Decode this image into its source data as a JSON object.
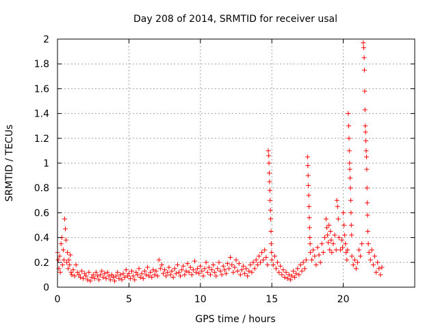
{
  "chart_data": {
    "type": "scatter",
    "title": "Day 208 of 2014, SRMTID for receiver usal",
    "xlabel": "GPS time / hours",
    "ylabel": "SRMTID / TECUs",
    "xlim": [
      0,
      25
    ],
    "ylim": [
      0,
      2
    ],
    "xticks": [
      0,
      5,
      10,
      15,
      20
    ],
    "yticks": [
      0,
      0.2,
      0.4,
      0.6,
      0.8,
      1,
      1.2,
      1.4,
      1.6,
      1.8,
      2
    ],
    "xtick_labels": [
      "0",
      "5",
      "10",
      "15",
      "20"
    ],
    "ytick_labels": [
      "0",
      "0.2",
      "0.4",
      "0.6",
      "0.8",
      "1",
      "1.2",
      "1.4",
      "1.6",
      "1.8",
      "2"
    ],
    "grid": true,
    "marker": "+",
    "color": "#ff0000",
    "series": [
      {
        "name": "SRMTID",
        "points": [
          [
            0.0,
            0.28
          ],
          [
            0.05,
            0.22
          ],
          [
            0.1,
            0.15
          ],
          [
            0.15,
            0.25
          ],
          [
            0.2,
            0.12
          ],
          [
            0.25,
            0.35
          ],
          [
            0.3,
            0.4
          ],
          [
            0.35,
            0.18
          ],
          [
            0.4,
            0.3
          ],
          [
            0.45,
            0.22
          ],
          [
            0.5,
            0.55
          ],
          [
            0.55,
            0.47
          ],
          [
            0.6,
            0.38
          ],
          [
            0.65,
            0.2
          ],
          [
            0.7,
            0.28
          ],
          [
            0.75,
            0.15
          ],
          [
            0.8,
            0.22
          ],
          [
            0.85,
            0.18
          ],
          [
            0.9,
            0.26
          ],
          [
            0.95,
            0.12
          ],
          [
            1.0,
            0.1
          ],
          [
            1.1,
            0.14
          ],
          [
            1.2,
            0.09
          ],
          [
            1.3,
            0.18
          ],
          [
            1.4,
            0.12
          ],
          [
            1.5,
            0.1
          ],
          [
            1.6,
            0.08
          ],
          [
            1.7,
            0.13
          ],
          [
            1.8,
            0.07
          ],
          [
            1.9,
            0.11
          ],
          [
            2.0,
            0.09
          ],
          [
            2.1,
            0.06
          ],
          [
            2.2,
            0.12
          ],
          [
            2.3,
            0.05
          ],
          [
            2.4,
            0.08
          ],
          [
            2.5,
            0.1
          ],
          [
            2.6,
            0.07
          ],
          [
            2.7,
            0.12
          ],
          [
            2.8,
            0.09
          ],
          [
            2.9,
            0.06
          ],
          [
            3.0,
            0.1
          ],
          [
            3.1,
            0.13
          ],
          [
            3.2,
            0.08
          ],
          [
            3.3,
            0.11
          ],
          [
            3.4,
            0.07
          ],
          [
            3.5,
            0.12
          ],
          [
            3.6,
            0.09
          ],
          [
            3.7,
            0.06
          ],
          [
            3.8,
            0.1
          ],
          [
            3.9,
            0.08
          ],
          [
            4.0,
            0.05
          ],
          [
            4.1,
            0.09
          ],
          [
            4.2,
            0.12
          ],
          [
            4.3,
            0.07
          ],
          [
            4.4,
            0.1
          ],
          [
            4.5,
            0.06
          ],
          [
            4.6,
            0.11
          ],
          [
            4.7,
            0.08
          ],
          [
            4.8,
            0.14
          ],
          [
            4.9,
            0.09
          ],
          [
            5.0,
            0.11
          ],
          [
            5.1,
            0.07
          ],
          [
            5.2,
            0.13
          ],
          [
            5.3,
            0.09
          ],
          [
            5.4,
            0.06
          ],
          [
            5.5,
            0.12
          ],
          [
            5.6,
            0.1
          ],
          [
            5.7,
            0.15
          ],
          [
            5.8,
            0.08
          ],
          [
            5.9,
            0.11
          ],
          [
            6.0,
            0.07
          ],
          [
            6.1,
            0.13
          ],
          [
            6.2,
            0.1
          ],
          [
            6.3,
            0.16
          ],
          [
            6.4,
            0.09
          ],
          [
            6.5,
            0.12
          ],
          [
            6.6,
            0.08
          ],
          [
            6.7,
            0.14
          ],
          [
            6.8,
            0.1
          ],
          [
            6.9,
            0.13
          ],
          [
            7.0,
            0.09
          ],
          [
            7.1,
            0.22
          ],
          [
            7.2,
            0.15
          ],
          [
            7.3,
            0.18
          ],
          [
            7.4,
            0.11
          ],
          [
            7.5,
            0.14
          ],
          [
            7.6,
            0.09
          ],
          [
            7.7,
            0.12
          ],
          [
            7.8,
            0.16
          ],
          [
            7.9,
            0.1
          ],
          [
            8.0,
            0.13
          ],
          [
            8.1,
            0.08
          ],
          [
            8.2,
            0.15
          ],
          [
            8.3,
            0.11
          ],
          [
            8.4,
            0.18
          ],
          [
            8.5,
            0.12
          ],
          [
            8.6,
            0.09
          ],
          [
            8.7,
            0.14
          ],
          [
            8.8,
            0.17
          ],
          [
            8.9,
            0.1
          ],
          [
            9.0,
            0.13
          ],
          [
            9.1,
            0.19
          ],
          [
            9.2,
            0.12
          ],
          [
            9.3,
            0.16
          ],
          [
            9.4,
            0.1
          ],
          [
            9.5,
            0.14
          ],
          [
            9.6,
            0.21
          ],
          [
            9.7,
            0.12
          ],
          [
            9.8,
            0.15
          ],
          [
            9.9,
            0.11
          ],
          [
            10.0,
            0.17
          ],
          [
            10.1,
            0.13
          ],
          [
            10.2,
            0.09
          ],
          [
            10.3,
            0.15
          ],
          [
            10.4,
            0.2
          ],
          [
            10.5,
            0.12
          ],
          [
            10.6,
            0.16
          ],
          [
            10.7,
            0.1
          ],
          [
            10.8,
            0.14
          ],
          [
            10.9,
            0.18
          ],
          [
            11.0,
            0.12
          ],
          [
            11.1,
            0.09
          ],
          [
            11.2,
            0.15
          ],
          [
            11.3,
            0.2
          ],
          [
            11.4,
            0.13
          ],
          [
            11.5,
            0.1
          ],
          [
            11.6,
            0.17
          ],
          [
            11.7,
            0.14
          ],
          [
            11.8,
            0.11
          ],
          [
            11.9,
            0.19
          ],
          [
            12.0,
            0.15
          ],
          [
            12.1,
            0.24
          ],
          [
            12.2,
            0.18
          ],
          [
            12.3,
            0.12
          ],
          [
            12.4,
            0.16
          ],
          [
            12.5,
            0.22
          ],
          [
            12.6,
            0.13
          ],
          [
            12.7,
            0.19
          ],
          [
            12.8,
            0.1
          ],
          [
            12.9,
            0.14
          ],
          [
            13.0,
            0.17
          ],
          [
            13.1,
            0.11
          ],
          [
            13.2,
            0.15
          ],
          [
            13.3,
            0.09
          ],
          [
            13.4,
            0.13
          ],
          [
            13.5,
            0.18
          ],
          [
            13.6,
            0.12
          ],
          [
            13.7,
            0.2
          ],
          [
            13.8,
            0.15
          ],
          [
            13.9,
            0.22
          ],
          [
            14.0,
            0.18
          ],
          [
            14.1,
            0.25
          ],
          [
            14.2,
            0.2
          ],
          [
            14.3,
            0.28
          ],
          [
            14.4,
            0.22
          ],
          [
            14.5,
            0.3
          ],
          [
            14.6,
            0.24
          ],
          [
            14.7,
            0.18
          ],
          [
            14.75,
            1.1
          ],
          [
            14.78,
            1.06
          ],
          [
            14.8,
            1.0
          ],
          [
            14.82,
            0.92
          ],
          [
            14.84,
            0.85
          ],
          [
            14.86,
            0.78
          ],
          [
            14.88,
            0.7
          ],
          [
            14.9,
            0.62
          ],
          [
            14.92,
            0.55
          ],
          [
            14.94,
            0.45
          ],
          [
            14.96,
            0.35
          ],
          [
            14.98,
            0.28
          ],
          [
            15.0,
            0.22
          ],
          [
            15.1,
            0.18
          ],
          [
            15.2,
            0.25
          ],
          [
            15.3,
            0.15
          ],
          [
            15.4,
            0.2
          ],
          [
            15.5,
            0.12
          ],
          [
            15.6,
            0.17
          ],
          [
            15.7,
            0.1
          ],
          [
            15.8,
            0.14
          ],
          [
            15.9,
            0.08
          ],
          [
            16.0,
            0.12
          ],
          [
            16.1,
            0.07
          ],
          [
            16.2,
            0.1
          ],
          [
            16.3,
            0.06
          ],
          [
            16.4,
            0.09
          ],
          [
            16.5,
            0.13
          ],
          [
            16.6,
            0.08
          ],
          [
            16.7,
            0.11
          ],
          [
            16.8,
            0.15
          ],
          [
            16.9,
            0.1
          ],
          [
            17.0,
            0.18
          ],
          [
            17.1,
            0.13
          ],
          [
            17.2,
            0.2
          ],
          [
            17.3,
            0.15
          ],
          [
            17.4,
            0.22
          ],
          [
            17.5,
            1.05
          ],
          [
            17.52,
            0.98
          ],
          [
            17.54,
            0.9
          ],
          [
            17.56,
            0.82
          ],
          [
            17.58,
            0.74
          ],
          [
            17.6,
            0.65
          ],
          [
            17.62,
            0.56
          ],
          [
            17.64,
            0.48
          ],
          [
            17.66,
            0.4
          ],
          [
            17.68,
            0.35
          ],
          [
            17.7,
            0.28
          ],
          [
            17.8,
            0.22
          ],
          [
            17.9,
            0.3
          ],
          [
            18.0,
            0.25
          ],
          [
            18.1,
            0.18
          ],
          [
            18.2,
            0.32
          ],
          [
            18.3,
            0.26
          ],
          [
            18.4,
            0.2
          ],
          [
            18.5,
            0.35
          ],
          [
            18.6,
            0.28
          ],
          [
            18.7,
            0.4
          ],
          [
            18.8,
            0.55
          ],
          [
            18.85,
            0.48
          ],
          [
            18.9,
            0.42
          ],
          [
            18.95,
            0.36
          ],
          [
            19.0,
            0.5
          ],
          [
            19.05,
            0.3
          ],
          [
            19.1,
            0.45
          ],
          [
            19.15,
            0.38
          ],
          [
            19.2,
            0.28
          ],
          [
            19.3,
            0.35
          ],
          [
            19.4,
            0.42
          ],
          [
            19.5,
            0.3
          ],
          [
            19.55,
            0.7
          ],
          [
            19.6,
            0.65
          ],
          [
            19.65,
            0.55
          ],
          [
            19.7,
            0.4
          ],
          [
            19.8,
            0.3
          ],
          [
            19.9,
            0.38
          ],
          [
            19.95,
            0.32
          ],
          [
            20.0,
            0.6
          ],
          [
            20.05,
            0.5
          ],
          [
            20.1,
            0.42
          ],
          [
            20.15,
            0.35
          ],
          [
            20.2,
            0.28
          ],
          [
            20.25,
            0.22
          ],
          [
            20.3,
            0.3
          ],
          [
            20.35,
            1.4
          ],
          [
            20.38,
            1.3
          ],
          [
            20.4,
            1.2
          ],
          [
            20.42,
            1.1
          ],
          [
            20.44,
            1.0
          ],
          [
            20.46,
            0.95
          ],
          [
            20.48,
            0.88
          ],
          [
            20.5,
            0.8
          ],
          [
            20.52,
            0.7
          ],
          [
            20.54,
            0.6
          ],
          [
            20.56,
            0.5
          ],
          [
            20.58,
            0.42
          ],
          [
            20.6,
            0.25
          ],
          [
            20.7,
            0.18
          ],
          [
            20.8,
            0.22
          ],
          [
            20.9,
            0.15
          ],
          [
            21.0,
            0.2
          ],
          [
            21.1,
            0.3
          ],
          [
            21.2,
            0.25
          ],
          [
            21.3,
            0.35
          ],
          [
            21.4,
            1.97
          ],
          [
            21.43,
            1.93
          ],
          [
            21.46,
            1.85
          ],
          [
            21.48,
            1.75
          ],
          [
            21.5,
            1.58
          ],
          [
            21.52,
            1.43
          ],
          [
            21.54,
            1.3
          ],
          [
            21.56,
            1.25
          ],
          [
            21.58,
            1.18
          ],
          [
            21.6,
            1.1
          ],
          [
            21.62,
            1.05
          ],
          [
            21.64,
            0.95
          ],
          [
            21.66,
            0.8
          ],
          [
            21.68,
            0.68
          ],
          [
            21.7,
            0.58
          ],
          [
            21.72,
            0.45
          ],
          [
            21.75,
            0.35
          ],
          [
            21.8,
            0.28
          ],
          [
            21.9,
            0.22
          ],
          [
            22.0,
            0.3
          ],
          [
            22.1,
            0.18
          ],
          [
            22.2,
            0.25
          ],
          [
            22.3,
            0.12
          ],
          [
            22.4,
            0.2
          ],
          [
            22.5,
            0.15
          ],
          [
            22.6,
            0.1
          ],
          [
            22.7,
            0.16
          ]
        ]
      }
    ]
  }
}
